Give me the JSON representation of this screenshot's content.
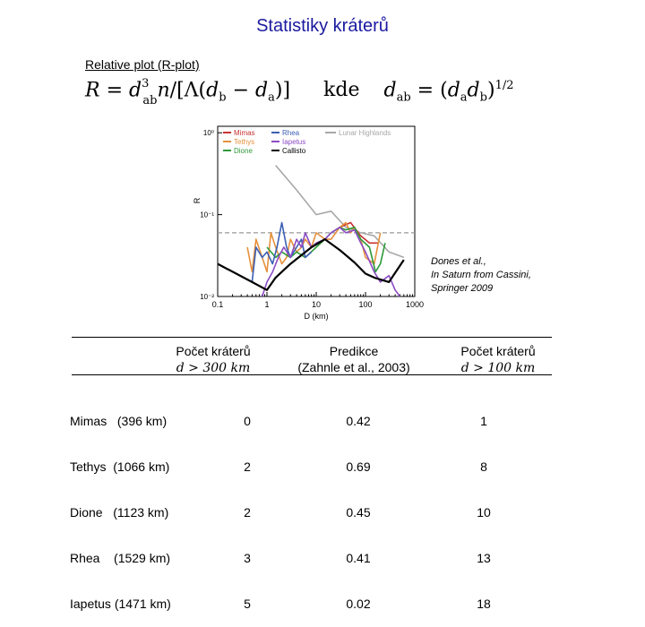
{
  "title": "Statistiky kráterů",
  "subtitle": "Relative plot (R-plot)",
  "formula": {
    "lhs": "R",
    "eq": "=",
    "d": "d",
    "sub_ab": "ab",
    "sup3": "3",
    "n": "n",
    "slash": "/",
    "lbrack": "[",
    "Lambda": "Λ",
    "lparen": "(",
    "db_d": "d",
    "b": "b",
    "minus": "−",
    "da_d": "d",
    "a": "a",
    "rparen": ")",
    "rbrack": "]",
    "kde": "kde",
    "dab_d": "d",
    "dab_sub": "ab",
    "eq2": "=",
    "paren2_open": "(",
    "da2_d": "d",
    "da2_sub": "a",
    "db2_d": "d",
    "db2_sub": "b",
    "paren2_close": ")",
    "exp": "1/2"
  },
  "citation": [
    "Dones et al.,",
    "In Saturn from Cassini,",
    "Springer 2009"
  ],
  "chart_data": {
    "type": "line",
    "xlabel": "D (km)",
    "ylabel": "R",
    "xscale": "log",
    "yscale": "log",
    "xlim": [
      0.1,
      1000
    ],
    "ylim": [
      0.01,
      1.2
    ],
    "x_ticks": [
      "0.1",
      "1",
      "10",
      "100",
      "1000"
    ],
    "y_ticks": [
      "10⁰",
      "10⁻¹",
      "10⁻²"
    ],
    "legend": [
      "Mimas",
      "Tethys",
      "Dione",
      "Rhea",
      "Iapetus",
      "Callisto",
      "Lunar Highlands"
    ],
    "reference_line_R": 0.06,
    "colors": {
      "Mimas": "#c83232",
      "Tethys": "#e6913c",
      "Dione": "#2e9a3a",
      "Rhea": "#3c5fb4",
      "Iapetus": "#8c4bc4",
      "Callisto": "#000000",
      "Lunar Highlands": "#a8a8a8"
    },
    "series": [
      {
        "name": "Lunar Highlands",
        "x": [
          1.5,
          4,
          10,
          20,
          40,
          80,
          150,
          300,
          600
        ],
        "y": [
          0.4,
          0.2,
          0.1,
          0.11,
          0.07,
          0.06,
          0.055,
          0.035,
          0.03
        ]
      },
      {
        "name": "Mimas",
        "x": [
          30,
          50,
          80,
          120,
          180
        ],
        "y": [
          0.07,
          0.08,
          0.055,
          0.045,
          0.045
        ]
      },
      {
        "name": "Tethys",
        "x": [
          0.4,
          0.5,
          0.6,
          0.8,
          1,
          1.2,
          1.5,
          2,
          2.5,
          3,
          4,
          5,
          6,
          8,
          10,
          15,
          20,
          30,
          40,
          50,
          60,
          80,
          100,
          150,
          200
        ],
        "y": [
          0.04,
          0.02,
          0.05,
          0.03,
          0.02,
          0.06,
          0.04,
          0.025,
          0.03,
          0.05,
          0.035,
          0.04,
          0.05,
          0.04,
          0.06,
          0.05,
          0.05,
          0.07,
          0.08,
          0.06,
          0.07,
          0.05,
          0.03,
          0.025,
          0.06
        ]
      },
      {
        "name": "Dione",
        "x": [
          1,
          1.5,
          2,
          3,
          4,
          6,
          10,
          15,
          20,
          30,
          40,
          60,
          80,
          120,
          160,
          200,
          250
        ],
        "y": [
          0.04,
          0.03,
          0.035,
          0.03,
          0.035,
          0.03,
          0.04,
          0.05,
          0.06,
          0.07,
          0.065,
          0.07,
          0.05,
          0.04,
          0.02,
          0.025,
          0.045
        ]
      },
      {
        "name": "Rhea",
        "x": [
          0.5,
          0.6,
          0.8,
          1,
          1.3,
          1.6,
          2,
          2.5,
          3,
          4,
          5,
          6,
          8
        ],
        "y": [
          0.015,
          0.04,
          0.03,
          0.035,
          0.025,
          0.04,
          0.08,
          0.04,
          0.03,
          0.04,
          0.05,
          0.03,
          0.035
        ]
      },
      {
        "name": "Iapetus",
        "x": [
          0.8,
          1,
          1.3,
          1.7,
          2.2,
          3,
          4,
          5,
          6,
          8,
          10,
          15,
          20,
          30,
          40,
          60,
          80,
          100,
          150,
          200,
          300,
          400,
          500
        ],
        "y": [
          0.01,
          0.015,
          0.02,
          0.03,
          0.04,
          0.03,
          0.05,
          0.04,
          0.06,
          0.04,
          0.045,
          0.05,
          0.06,
          0.07,
          0.06,
          0.065,
          0.045,
          0.035,
          0.02,
          0.015,
          0.018,
          0.012,
          0.01
        ]
      },
      {
        "name": "Callisto",
        "x": [
          0.1,
          0.5,
          1,
          1.5,
          3,
          8,
          15,
          30,
          60,
          100,
          150,
          300,
          600
        ],
        "y": [
          0.025,
          0.015,
          0.012,
          0.017,
          0.025,
          0.04,
          0.05,
          0.037,
          0.026,
          0.019,
          0.017,
          0.015,
          0.028
        ]
      }
    ]
  },
  "table": {
    "col1_header": [
      "Počet kráterů",
      "d > 300 km"
    ],
    "col2_header": [
      "Predikce",
      "(Zahnle et al., 2003)"
    ],
    "col3_header": [
      "Počet kráterů",
      "d > 100 km"
    ],
    "rows": [
      {
        "moon": "Mimas   (396 km)",
        "count300": "0",
        "prediction": "0.42",
        "count100": "1"
      },
      {
        "moon": "Tethys  (1066 km)",
        "count300": "2",
        "prediction": "0.69",
        "count100": "8"
      },
      {
        "moon": "Dione   (1123 km)",
        "count300": "2",
        "prediction": "0.45",
        "count100": "10"
      },
      {
        "moon": "Rhea    (1529 km)",
        "count300": "3",
        "prediction": "0.41",
        "count100": "13"
      },
      {
        "moon": "Iapetus (1471 km)",
        "count300": "5",
        "prediction": "0.02",
        "count100": "18"
      }
    ]
  }
}
